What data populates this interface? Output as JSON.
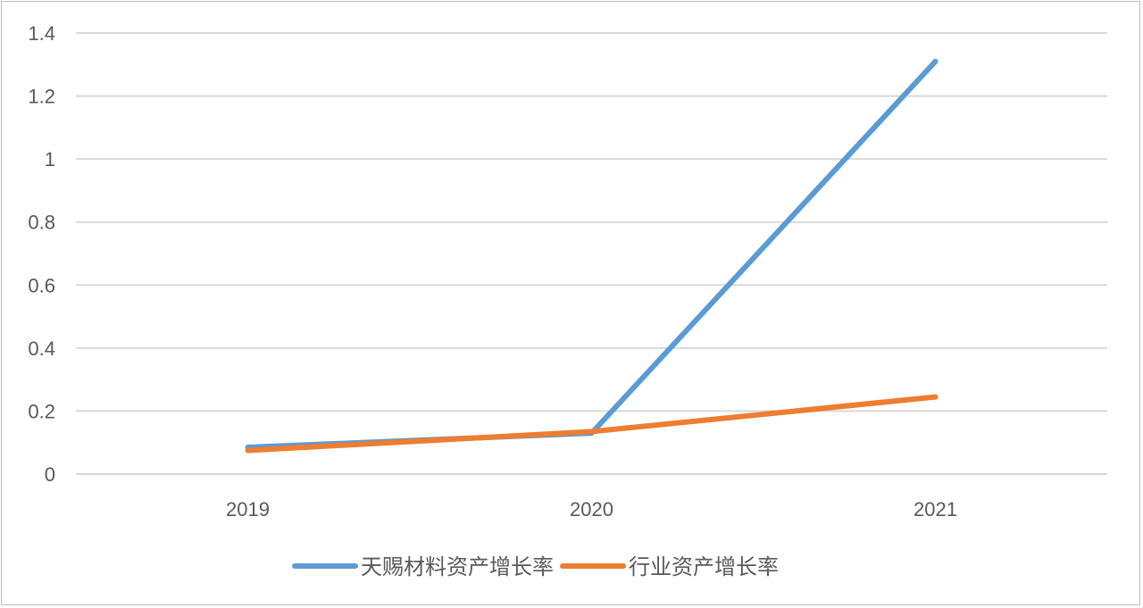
{
  "chart_data": {
    "type": "line",
    "title": "",
    "xlabel": "",
    "ylabel": "",
    "categories": [
      "2019",
      "2020",
      "2021"
    ],
    "ylim": [
      0,
      1.4
    ],
    "yticks": [
      0,
      0.2,
      0.4,
      0.6,
      0.8,
      1,
      1.2,
      1.4
    ],
    "ytick_labels": [
      "0",
      "0.2",
      "0.4",
      "0.6",
      "0.8",
      "1",
      "1.2",
      "1.4"
    ],
    "grid": true,
    "legend_position": "bottom",
    "series": [
      {
        "name": "天赐材料资产增长率",
        "values": [
          0.085,
          0.13,
          1.31
        ],
        "color": "#5b9bd5"
      },
      {
        "name": "行业资产增长率",
        "values": [
          0.075,
          0.135,
          0.245
        ],
        "color": "#ed7d31"
      }
    ]
  }
}
